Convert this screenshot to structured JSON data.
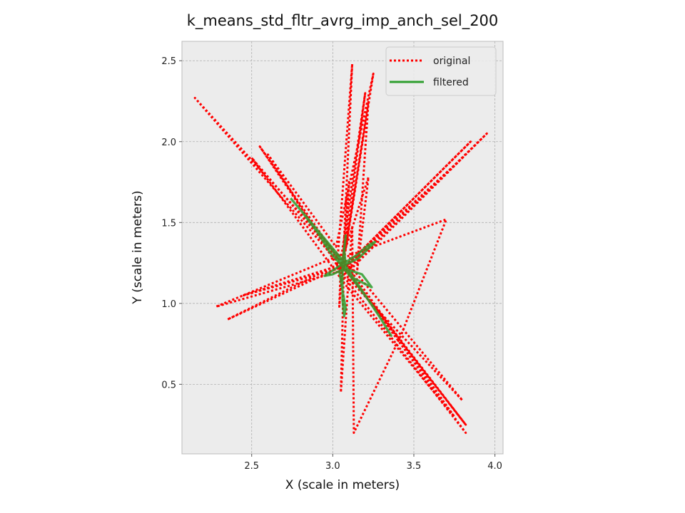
{
  "chart_data": {
    "type": "line",
    "title": "k_means_std_fltr_avrg_imp_anch_sel_200",
    "xlabel": "X (scale in meters)",
    "ylabel": "Y (scale in meters)",
    "xlim": [
      2.07,
      4.05
    ],
    "ylim": [
      0.07,
      2.62
    ],
    "x_ticks": [
      2.5,
      3.0,
      3.5,
      4.0
    ],
    "x_tick_labels": [
      "2.5",
      "3.0",
      "3.5",
      "4.0"
    ],
    "y_ticks": [
      0.5,
      1.0,
      1.5,
      2.0,
      2.5
    ],
    "y_tick_labels": [
      "0.5",
      "1.0",
      "1.5",
      "2.0",
      "2.5"
    ],
    "grid": true,
    "legend_position": "upper right",
    "series": [
      {
        "name": "original",
        "color": "#ff0000",
        "style": "dotted",
        "points": [
          [
            3.08,
            1.25
          ],
          [
            2.15,
            2.27
          ],
          [
            3.08,
            1.2
          ],
          [
            3.82,
            0.25
          ],
          [
            3.06,
            1.24
          ],
          [
            2.55,
            1.97
          ],
          [
            3.1,
            1.15
          ],
          [
            3.8,
            0.4
          ],
          [
            3.05,
            1.3
          ],
          [
            2.28,
            0.98
          ],
          [
            3.12,
            1.22
          ],
          [
            3.95,
            2.05
          ],
          [
            3.06,
            1.18
          ],
          [
            3.12,
            2.48
          ],
          [
            3.03,
            1.28
          ],
          [
            2.5,
            1.9
          ],
          [
            3.09,
            1.1
          ],
          [
            3.75,
            0.3
          ],
          [
            3.07,
            1.26
          ],
          [
            2.35,
            0.9
          ],
          [
            3.1,
            1.25
          ],
          [
            3.85,
            2.0
          ],
          [
            3.06,
            1.21
          ],
          [
            3.25,
            2.42
          ],
          [
            3.02,
            1.35
          ],
          [
            2.6,
            1.92
          ],
          [
            3.08,
            1.15
          ],
          [
            3.82,
            0.2
          ],
          [
            3.06,
            1.24
          ],
          [
            2.45,
            1.05
          ],
          [
            3.09,
            1.23
          ],
          [
            3.8,
            1.9
          ],
          [
            3.04,
            1.2
          ],
          [
            3.2,
            2.3
          ],
          [
            3.07,
            1.3
          ],
          [
            3.05,
            0.45
          ],
          [
            3.12,
            1.48
          ],
          [
            3.13,
            0.2
          ],
          [
            3.42,
            0.8
          ],
          [
            3.7,
            1.52
          ],
          [
            3.06,
            1.28
          ],
          [
            3.22,
            1.78
          ],
          [
            3.15,
            1.2
          ],
          [
            3.22,
            2.25
          ],
          [
            3.08,
            1.35
          ],
          [
            3.1,
            1.75
          ],
          [
            3.04,
            0.98
          ],
          [
            3.05,
            1.25
          ]
        ]
      },
      {
        "name": "filtered",
        "color": "#2e9e2e",
        "style": "solid",
        "points": [
          [
            2.74,
            1.65
          ],
          [
            2.85,
            1.52
          ],
          [
            2.95,
            1.4
          ],
          [
            3.05,
            1.28
          ],
          [
            3.1,
            1.2
          ],
          [
            3.2,
            1.05
          ],
          [
            3.3,
            0.9
          ],
          [
            3.36,
            0.8
          ],
          [
            3.25,
            0.98
          ],
          [
            3.13,
            1.14
          ],
          [
            3.05,
            1.24
          ],
          [
            2.98,
            1.32
          ],
          [
            2.9,
            1.45
          ],
          [
            2.8,
            1.58
          ],
          [
            2.92,
            1.42
          ],
          [
            3.02,
            1.3
          ],
          [
            3.08,
            1.22
          ],
          [
            3.0,
            1.18
          ],
          [
            2.95,
            1.17
          ],
          [
            3.04,
            1.23
          ],
          [
            3.15,
            1.3
          ],
          [
            3.22,
            1.36
          ],
          [
            3.26,
            1.38
          ],
          [
            3.16,
            1.28
          ],
          [
            3.08,
            1.24
          ],
          [
            3.07,
            1.33
          ],
          [
            3.08,
            1.42
          ],
          [
            3.06,
            1.25
          ],
          [
            3.06,
            1.1
          ],
          [
            3.06,
            1.02
          ],
          [
            3.07,
            0.92
          ],
          [
            3.08,
            0.97
          ],
          [
            3.06,
            1.08
          ],
          [
            3.04,
            1.2
          ],
          [
            3.09,
            1.21
          ],
          [
            3.18,
            1.18
          ],
          [
            3.24,
            1.1
          ],
          [
            3.12,
            1.16
          ],
          [
            3.05,
            1.25
          ]
        ]
      }
    ]
  }
}
